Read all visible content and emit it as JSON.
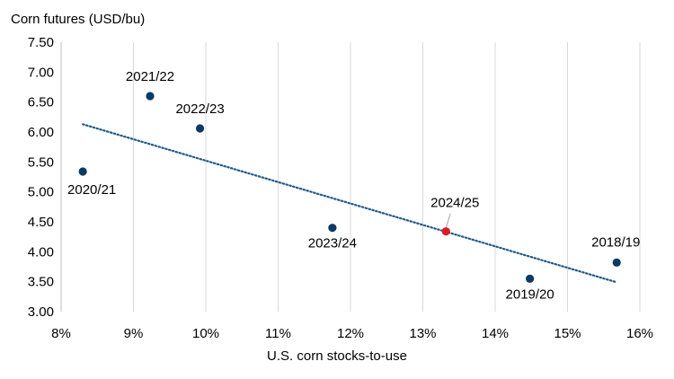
{
  "chart_data": {
    "type": "scatter",
    "title": "",
    "ylabel": "Corn futures (USD/bu)",
    "xlabel": "U.S. corn stocks-to-use",
    "xlim": [
      8,
      16
    ],
    "ylim": [
      3.0,
      7.5
    ],
    "x_ticks": [
      "8%",
      "9%",
      "10%",
      "11%",
      "12%",
      "13%",
      "14%",
      "15%",
      "16%"
    ],
    "y_ticks": [
      "3.00",
      "3.50",
      "4.00",
      "4.50",
      "5.00",
      "5.50",
      "6.00",
      "6.50",
      "7.00",
      "7.50"
    ],
    "grid": "vertical",
    "points": [
      {
        "label": "2020/21",
        "x": 8.3,
        "y": 5.34,
        "color": "#0b3a66"
      },
      {
        "label": "2021/22",
        "x": 9.23,
        "y": 6.6,
        "color": "#0b3a66"
      },
      {
        "label": "2022/23",
        "x": 9.92,
        "y": 6.06,
        "color": "#0b3a66"
      },
      {
        "label": "2023/24",
        "x": 11.75,
        "y": 4.4,
        "color": "#0b3a66"
      },
      {
        "label": "2024/25",
        "x": 13.32,
        "y": 4.34,
        "color": "#e0191f"
      },
      {
        "label": "2019/20",
        "x": 14.48,
        "y": 3.55,
        "color": "#0b3a66"
      },
      {
        "label": "2018/19",
        "x": 15.68,
        "y": 3.82,
        "color": "#0b3a66"
      }
    ],
    "trendline": {
      "style": "dotted",
      "color": "#1f5b8c",
      "x": [
        8.3,
        15.68
      ],
      "y": [
        6.13,
        3.49
      ]
    }
  }
}
